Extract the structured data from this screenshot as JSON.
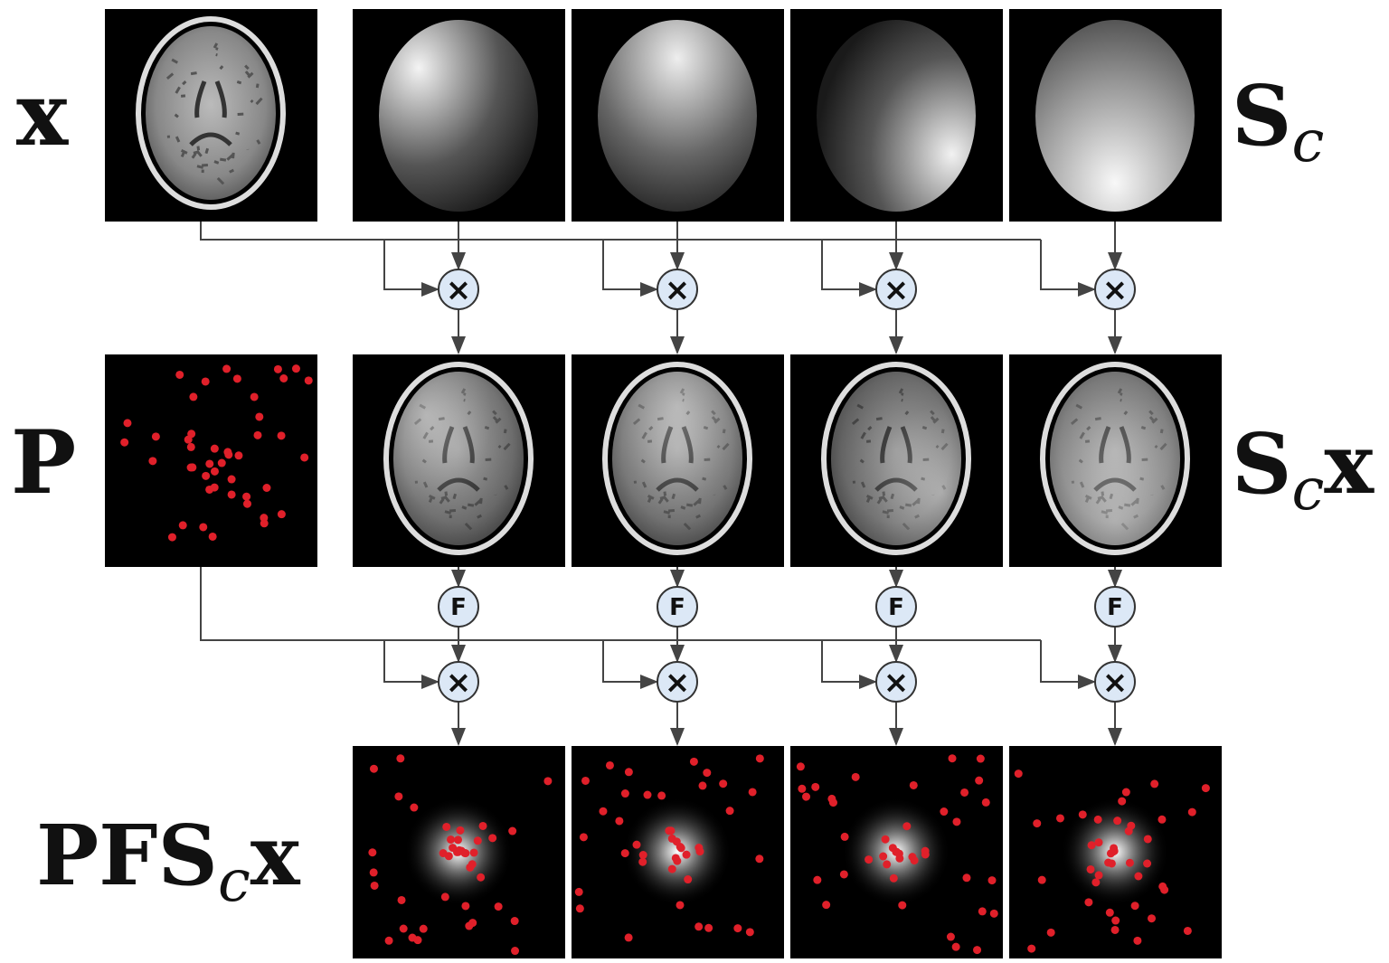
{
  "row_labels": {
    "image": "x",
    "coil_maps": {
      "base": "S",
      "sub": "c"
    },
    "mask": "P",
    "coil_images": {
      "base": "S",
      "sub": "c",
      "tail": "x"
    },
    "kspace": {
      "base": "PFS",
      "sub": "c",
      "tail": "x"
    }
  },
  "operators": {
    "multiply": "×",
    "fourier": "F"
  }
}
